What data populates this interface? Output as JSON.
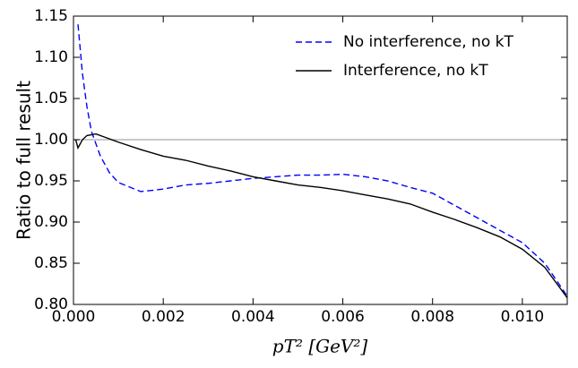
{
  "chart_data": {
    "type": "line",
    "ylabel": "Ratio to full result",
    "xlabel": "pT² [GeV²]",
    "reference_line": 1.0,
    "xlim": [
      0,
      0.011
    ],
    "ylim": [
      0.8,
      1.15
    ],
    "xticks": [
      {
        "value": 0,
        "label": "0.000"
      },
      {
        "value": 0.002,
        "label": "0.002"
      },
      {
        "value": 0.004,
        "label": "0.004"
      },
      {
        "value": 0.006,
        "label": "0.006"
      },
      {
        "value": 0.008,
        "label": "0.008"
      },
      {
        "value": 0.01,
        "label": "0.010"
      }
    ],
    "yticks": [
      {
        "value": 0.8,
        "label": "0.80"
      },
      {
        "value": 0.85,
        "label": "0.85"
      },
      {
        "value": 0.9,
        "label": "0.90"
      },
      {
        "value": 0.95,
        "label": "0.95"
      },
      {
        "value": 1.0,
        "label": "1.00"
      },
      {
        "value": 1.05,
        "label": "1.05"
      },
      {
        "value": 1.1,
        "label": "1.10"
      },
      {
        "value": 1.15,
        "label": "1.15"
      }
    ],
    "legend": "upper right",
    "series": [
      {
        "name": "No interference, no kT",
        "color": "#0000ff",
        "dash": true,
        "x": [
          0.0001,
          0.0002,
          0.0003,
          0.0004,
          0.0006,
          0.0008,
          0.001,
          0.0015,
          0.002,
          0.0025,
          0.003,
          0.0035,
          0.004,
          0.0045,
          0.005,
          0.0055,
          0.006,
          0.0065,
          0.007,
          0.0075,
          0.008,
          0.0085,
          0.009,
          0.0095,
          0.01,
          0.0105,
          0.011
        ],
        "values": [
          1.14,
          1.08,
          1.04,
          1.01,
          0.98,
          0.96,
          0.948,
          0.937,
          0.94,
          0.945,
          0.947,
          0.95,
          0.953,
          0.955,
          0.957,
          0.957,
          0.958,
          0.955,
          0.95,
          0.942,
          0.935,
          0.92,
          0.905,
          0.89,
          0.875,
          0.85,
          0.81
        ]
      },
      {
        "name": "Interference, no kT",
        "color": "#000000",
        "dash": false,
        "x": [
          5e-05,
          0.0001,
          0.0002,
          0.0003,
          0.0005,
          0.0007,
          0.001,
          0.0015,
          0.002,
          0.0025,
          0.003,
          0.0035,
          0.004,
          0.0045,
          0.005,
          0.0055,
          0.006,
          0.0065,
          0.007,
          0.0075,
          0.008,
          0.0085,
          0.009,
          0.0095,
          0.01,
          0.0105,
          0.011
        ],
        "values": [
          1.0,
          0.99,
          1.0,
          1.005,
          1.007,
          1.003,
          0.997,
          0.988,
          0.98,
          0.975,
          0.968,
          0.962,
          0.955,
          0.95,
          0.945,
          0.942,
          0.938,
          0.933,
          0.928,
          0.922,
          0.912,
          0.903,
          0.893,
          0.882,
          0.867,
          0.845,
          0.808
        ]
      }
    ]
  }
}
